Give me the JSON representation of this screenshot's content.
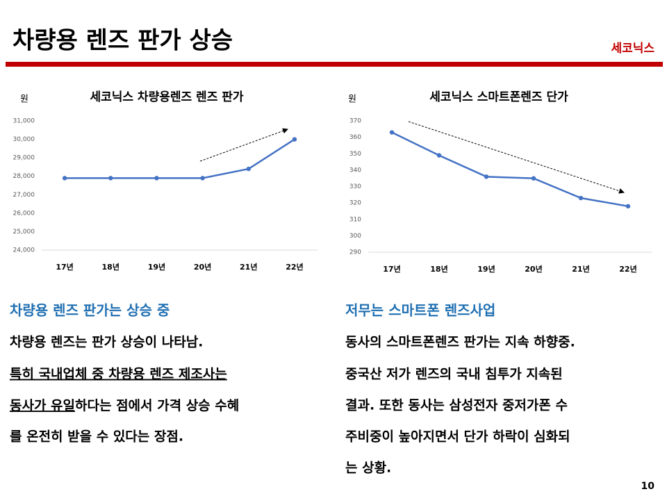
{
  "header": {
    "title": "차량용 렌즈 판가 상승",
    "brand": "세코닉스"
  },
  "chart_data": [
    {
      "type": "line",
      "title": "세코닉스 차량용렌즈 렌즈 판가",
      "y_label": "원",
      "categories": [
        "17년",
        "18년",
        "19년",
        "20년",
        "21년",
        "22년"
      ],
      "values": [
        27900,
        27900,
        27900,
        27900,
        28400,
        30000
      ],
      "color": "#4472c4",
      "ylim": [
        24000,
        31000
      ],
      "yticks": [
        {
          "value": 24000,
          "label": "24,000"
        },
        {
          "value": 25000,
          "label": "25,000"
        },
        {
          "value": 26000,
          "label": "26,000"
        },
        {
          "value": 27000,
          "label": "27,000"
        },
        {
          "value": 28000,
          "label": "28,000"
        },
        {
          "value": 29000,
          "label": "29,000"
        },
        {
          "value": 30000,
          "label": "30,000"
        },
        {
          "value": 31000,
          "label": "31,000"
        }
      ],
      "grid": false
    },
    {
      "type": "line",
      "title": "세코닉스 스마트폰렌즈 단가",
      "y_label": "원",
      "categories": [
        "17년",
        "18년",
        "19년",
        "20년",
        "21년",
        "22년"
      ],
      "values": [
        363,
        349,
        336,
        335,
        323,
        318
      ],
      "color": "#4472c4",
      "ylim": [
        290,
        370
      ],
      "yticks": [
        290,
        300,
        310,
        320,
        330,
        340,
        350,
        360,
        370
      ],
      "grid": false
    }
  ],
  "left_text": {
    "heading": "차량용 렌즈 판가는 상승 중",
    "lines": [
      [
        "차량용 렌즈는 판가 상승이 나타남."
      ],
      [
        "특히 국내업체 중 차량용 렌즈 제조사는"
      ],
      [
        "동사가 유일",
        "하다는 점에서 가격 상승 수혜"
      ],
      [
        "를 온전히 받을 수 있다는 장점."
      ]
    ]
  },
  "right_text": {
    "heading": "저무는 스마트폰 렌즈사업",
    "lines": [
      "동사의 스마트폰렌즈 판가는 지속 하향중.",
      "중국산 저가 렌즈의 국내 침투가 지속된",
      "결과. 또한 동사는 삼성전자 중저가폰 수",
      "주비중이 높아지면서 단가 하락이 심화되",
      "는 상황."
    ]
  },
  "page_number": "10"
}
